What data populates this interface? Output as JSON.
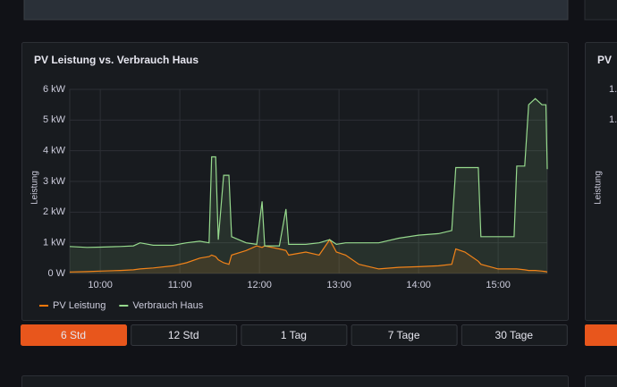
{
  "chart_data": {
    "type": "line",
    "title": "PV Leistung vs. Verbrauch Haus",
    "y_label": "Leistung",
    "x": [
      "09:37",
      "09:50",
      "10:00",
      "10:15",
      "10:25",
      "10:30",
      "10:40",
      "10:55",
      "11:05",
      "11:15",
      "11:22",
      "11:24",
      "11:27",
      "11:29",
      "11:33",
      "11:37",
      "11:39",
      "11:50",
      "11:58",
      "12:02",
      "12:04",
      "12:15",
      "12:20",
      "12:22",
      "12:35",
      "12:45",
      "12:53",
      "12:58",
      "13:05",
      "13:15",
      "13:30",
      "13:45",
      "14:00",
      "14:15",
      "14:25",
      "14:28",
      "14:35",
      "14:45",
      "14:47",
      "15:00",
      "15:12",
      "15:14",
      "15:20",
      "15:23",
      "15:28",
      "15:33",
      "15:36",
      "15:37"
    ],
    "xlim": [
      "09:37",
      "15:37"
    ],
    "xticks": [
      "10:00",
      "11:00",
      "12:00",
      "13:00",
      "14:00",
      "15:00"
    ],
    "ylim": [
      0,
      6
    ],
    "yticks": [
      {
        "value": 0,
        "label": "0 W"
      },
      {
        "value": 1,
        "label": "1 kW"
      },
      {
        "value": 2,
        "label": "2 kW"
      },
      {
        "value": 3,
        "label": "3 kW"
      },
      {
        "value": 4,
        "label": "4 kW"
      },
      {
        "value": 5,
        "label": "5 kW"
      },
      {
        "value": 6,
        "label": "6 kW"
      }
    ],
    "grid": true,
    "legend": "bottom-left",
    "series": [
      {
        "name": "PV Leistung",
        "color": "#ff780a",
        "values": [
          0.05,
          0.06,
          0.08,
          0.1,
          0.12,
          0.15,
          0.18,
          0.25,
          0.35,
          0.5,
          0.55,
          0.6,
          0.55,
          0.45,
          0.35,
          0.3,
          0.6,
          0.75,
          0.9,
          0.85,
          0.9,
          0.8,
          0.75,
          0.6,
          0.7,
          0.6,
          1.1,
          0.7,
          0.6,
          0.3,
          0.15,
          0.2,
          0.22,
          0.25,
          0.3,
          0.8,
          0.7,
          0.4,
          0.3,
          0.15,
          0.15,
          0.15,
          0.12,
          0.1,
          0.1,
          0.08,
          0.06,
          0.05
        ]
      },
      {
        "name": "Verbrauch Haus",
        "color": "#96d98d",
        "values": [
          0.88,
          0.85,
          0.86,
          0.88,
          0.9,
          1.0,
          0.92,
          0.92,
          1.0,
          1.05,
          1.0,
          3.8,
          3.8,
          1.1,
          3.2,
          3.2,
          1.2,
          1.0,
          0.95,
          2.35,
          0.9,
          0.9,
          2.1,
          0.95,
          0.95,
          1.0,
          1.1,
          0.95,
          1.0,
          1.0,
          1.0,
          1.15,
          1.25,
          1.3,
          1.4,
          3.45,
          3.45,
          3.45,
          1.2,
          1.2,
          1.2,
          3.5,
          3.5,
          5.5,
          5.7,
          5.5,
          5.5,
          3.4
        ]
      }
    ]
  },
  "buttons": [
    {
      "label": "6 Std",
      "active": true
    },
    {
      "label": "12 Std",
      "active": false
    },
    {
      "label": "1 Tag",
      "active": false
    },
    {
      "label": "7 Tage",
      "active": false
    },
    {
      "label": "30 Tage",
      "active": false
    }
  ],
  "side_panel": {
    "title": "PV",
    "ytick_labels": [
      "1.",
      "1."
    ],
    "y_label": "Leistung"
  }
}
